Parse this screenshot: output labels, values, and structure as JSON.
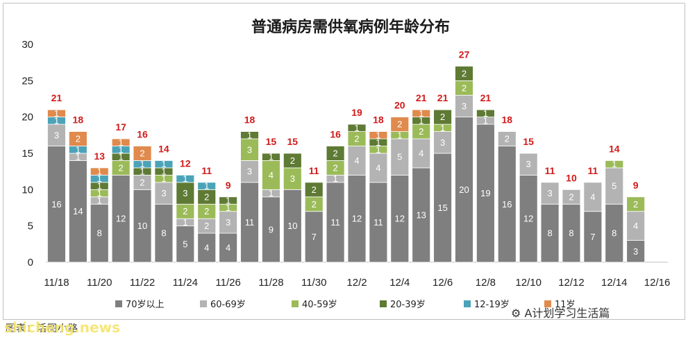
{
  "chart_data": {
    "type": "bar",
    "stacked": true,
    "title": "普通病房需供氧病例年龄分布",
    "ylim": [
      0,
      30
    ],
    "yticks": [
      0,
      5,
      10,
      15,
      20,
      25,
      30
    ],
    "grid": false,
    "legend_position": "bottom",
    "categories": [
      "11/18",
      "11/19",
      "11/20",
      "11/21",
      "11/22",
      "11/23",
      "11/24",
      "11/25",
      "11/26",
      "11/27",
      "11/28",
      "11/29",
      "11/30",
      "12/1",
      "12/2",
      "12/3",
      "12/4",
      "12/5",
      "12/6",
      "12/7",
      "12/8",
      "12/9",
      "12/10",
      "12/11",
      "12/12",
      "12/13",
      "12/14",
      "12/15",
      "12/16"
    ],
    "x_tick_labels": [
      "11/18",
      "11/20",
      "11/22",
      "11/24",
      "11/26",
      "11/28",
      "11/30",
      "12/2",
      "12/4",
      "12/6",
      "12/8",
      "12/10",
      "12/12",
      "12/14",
      "12/16"
    ],
    "series": [
      {
        "name": "70岁以上",
        "color": "#7f7f7f",
        "values": [
          16,
          14,
          8,
          12,
          10,
          8,
          5,
          4,
          4,
          11,
          9,
          10,
          7,
          11,
          12,
          11,
          12,
          13,
          15,
          20,
          19,
          16,
          12,
          8,
          8,
          7,
          8,
          3,
          null
        ]
      },
      {
        "name": "60-69岁",
        "color": "#b3b3b3",
        "values": [
          3,
          1,
          1,
          0,
          2,
          3,
          1,
          2,
          3,
          3,
          1,
          0,
          0,
          1,
          4,
          4,
          5,
          4,
          3,
          3,
          1,
          2,
          3,
          3,
          2,
          4,
          5,
          4,
          null
        ]
      },
      {
        "name": "40-59岁",
        "color": "#9bbb59",
        "values": [
          0,
          0,
          1,
          2,
          0,
          1,
          2,
          2,
          1,
          3,
          4,
          3,
          2,
          2,
          2,
          1,
          1,
          2,
          1,
          2,
          0,
          0,
          0,
          0,
          0,
          0,
          1,
          2,
          null
        ]
      },
      {
        "name": "20-39岁",
        "color": "#5e7a34",
        "values": [
          0,
          0,
          1,
          1,
          1,
          1,
          3,
          2,
          1,
          1,
          1,
          2,
          2,
          2,
          1,
          1,
          0,
          1,
          2,
          2,
          1,
          0,
          0,
          0,
          0,
          0,
          0,
          0,
          null
        ]
      },
      {
        "name": "12-19岁",
        "color": "#4ba3b8",
        "values": [
          1,
          1,
          1,
          1,
          1,
          1,
          1,
          1,
          0,
          0,
          0,
          0,
          0,
          0,
          0,
          0,
          0,
          0,
          0,
          0,
          0,
          0,
          0,
          0,
          0,
          0,
          0,
          0,
          null
        ]
      },
      {
        "name": "≤11岁",
        "color": "#e08a4d",
        "values": [
          1,
          2,
          1,
          1,
          2,
          0,
          0,
          0,
          0,
          0,
          0,
          0,
          0,
          0,
          0,
          1,
          2,
          1,
          0,
          0,
          0,
          0,
          0,
          0,
          0,
          0,
          0,
          0,
          null
        ]
      }
    ],
    "totals": [
      21,
      18,
      13,
      17,
      16,
      14,
      12,
      11,
      9,
      18,
      15,
      15,
      11,
      16,
      19,
      18,
      20,
      21,
      21,
      27,
      21,
      18,
      15,
      11,
      10,
      11,
      14,
      9,
      null
    ],
    "legend": [
      "70岁以上",
      "60-69岁",
      "40-59岁",
      "20-39岁",
      "12-19岁",
      "11岁"
    ]
  },
  "caption": "图表：活图小路",
  "watermark": "shicheng.news",
  "wechat_badge": "A计划学习生活篇"
}
